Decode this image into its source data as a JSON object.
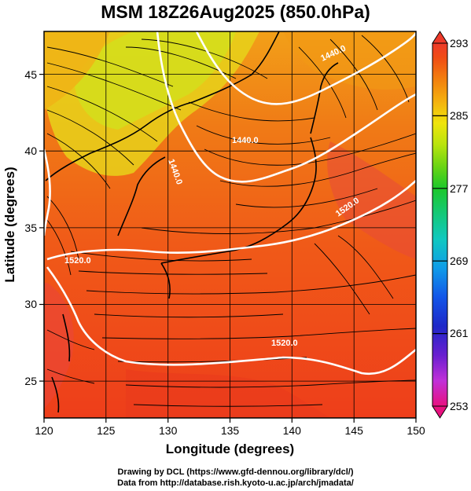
{
  "title": "MSM 18Z26Aug2025 (850.0hPa)",
  "axes": {
    "x_label": "Longitude (degrees)",
    "y_label": "Latitude  (degrees)",
    "x_ticks": [
      "120",
      "125",
      "130",
      "135",
      "140",
      "145",
      "150"
    ],
    "y_ticks": [
      "25",
      "30",
      "35",
      "40",
      "45"
    ],
    "x_range": [
      120,
      150
    ],
    "y_range": [
      22.4,
      47.6
    ]
  },
  "colorbar": {
    "ticks": [
      "293",
      "285",
      "277",
      "269",
      "261",
      "253"
    ],
    "range": [
      253,
      293
    ],
    "colors": [
      "#e8117f",
      "#c030d8",
      "#6a1fd0",
      "#1e28c8",
      "#1255e8",
      "#109ce8",
      "#10c8c0",
      "#14c878",
      "#1cc82a",
      "#6ad414",
      "#b8e40e",
      "#f0e40c",
      "#f4b00e",
      "#f2800e",
      "#f04c14",
      "#ee3a2a"
    ]
  },
  "contours": [
    {
      "label": "1440.0"
    },
    {
      "label": "1440.0"
    },
    {
      "label": "1440.0"
    },
    {
      "label": "1520.0"
    },
    {
      "label": "1520.0"
    },
    {
      "label": "1520.0"
    }
  ],
  "credits": {
    "line1": "Drawing by DCL (https://www.gfd-dennou.org/library/dcl/)",
    "line2": "Data from http://database.rish.kyoto-u.ac.jp/arch/jmadata/"
  }
}
